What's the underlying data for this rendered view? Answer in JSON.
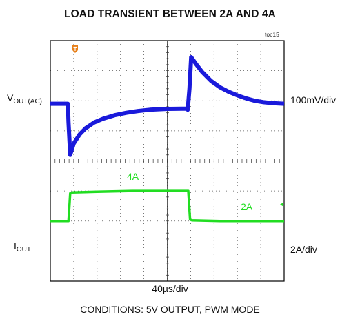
{
  "title": "LOAD TRANSIENT BETWEEN 2A AND 4A",
  "figure_id": "toc15",
  "conditions": "CONDITIONS: 5V OUTPUT, PWM MODE",
  "colors": {
    "vout_trace": "#1a1adb",
    "iout_trace": "#22dd22",
    "trigger_marker": "#e8801a",
    "grid": "#555555",
    "frame": "#000000"
  },
  "chart_data": {
    "type": "line",
    "title": "LOAD TRANSIENT BETWEEN 2A AND 4A",
    "xlabel": "40µs/div",
    "x_unit": "µs",
    "x_div": 40,
    "x_divisions": 10,
    "y_divisions": 8,
    "xlim": [
      0,
      400
    ],
    "grid": true,
    "series": [
      {
        "name": "VOUT(AC)",
        "channel_label_main": "V",
        "channel_label_sub": "OUT(AC)",
        "scale": "100mV/div",
        "baseline_div": 5.9,
        "points": [
          [
            0,
            0
          ],
          [
            30,
            0
          ],
          [
            31,
            -0.6
          ],
          [
            34,
            -1.7
          ],
          [
            40,
            -1.32
          ],
          [
            50,
            -1.02
          ],
          [
            60,
            -0.82
          ],
          [
            75,
            -0.62
          ],
          [
            90,
            -0.5
          ],
          [
            110,
            -0.38
          ],
          [
            130,
            -0.3
          ],
          [
            150,
            -0.24
          ],
          [
            170,
            -0.2
          ],
          [
            200,
            -0.17
          ],
          [
            235,
            -0.16
          ],
          [
            235,
            -0.2
          ],
          [
            238,
            0.5
          ],
          [
            241,
            1.55
          ],
          [
            250,
            1.3
          ],
          [
            260,
            1.05
          ],
          [
            275,
            0.76
          ],
          [
            290,
            0.55
          ],
          [
            305,
            0.4
          ],
          [
            320,
            0.28
          ],
          [
            335,
            0.18
          ],
          [
            350,
            0.1
          ],
          [
            365,
            0.05
          ],
          [
            380,
            0.02
          ],
          [
            400,
            0
          ]
        ]
      },
      {
        "name": "IOUT",
        "channel_label_main": "I",
        "channel_label_sub": "OUT",
        "scale": "2A/div",
        "baseline_div": 2.0,
        "points": [
          [
            0,
            2
          ],
          [
            31,
            2
          ],
          [
            34,
            3.85
          ],
          [
            37,
            3.9
          ],
          [
            80,
            3.95
          ],
          [
            140,
            4.0
          ],
          [
            236,
            4.0
          ],
          [
            239,
            2.1
          ],
          [
            242,
            2.05
          ],
          [
            290,
            2.0
          ],
          [
            400,
            2.0
          ]
        ],
        "annotations": [
          "4A",
          "2A"
        ]
      }
    ]
  }
}
